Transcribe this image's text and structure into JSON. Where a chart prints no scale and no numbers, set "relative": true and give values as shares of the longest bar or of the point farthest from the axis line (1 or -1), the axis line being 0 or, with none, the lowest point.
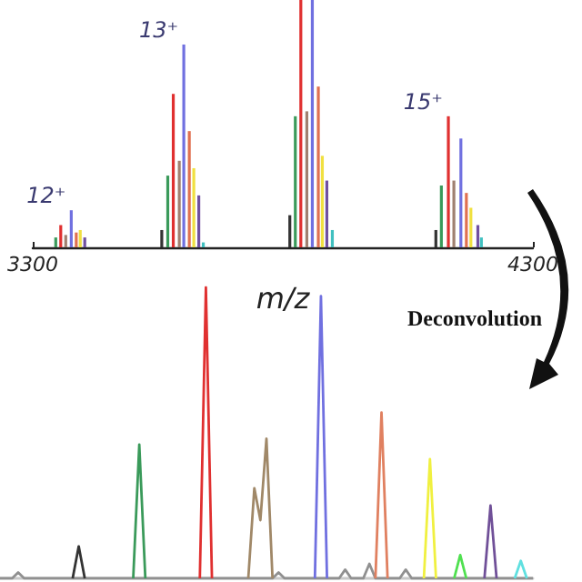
{
  "chart_data": [
    {
      "type": "bar",
      "relative": true,
      "xlabel": "m/z",
      "xlim": [
        3300,
        4300
      ],
      "xticks": [
        3300,
        4300
      ],
      "tick_labels": "x",
      "annotations": [
        {
          "text": "12⁺",
          "x": 3377,
          "y": 0.15
        },
        {
          "text": "13⁺",
          "x": 3602,
          "y": 0.82
        },
        {
          "text": "15⁺",
          "x": 4131,
          "y": 0.53
        },
        "Deconvolution"
      ],
      "series": [
        {
          "color": "#333333",
          "x": [
            3558,
            3814,
            4106
          ],
          "values": [
            0.07,
            0.13,
            0.07
          ]
        },
        {
          "color": "#3a9a5a",
          "x": [
            3346,
            3570,
            3825,
            4117
          ],
          "values": [
            0.04,
            0.29,
            0.53,
            0.25
          ]
        },
        {
          "color": "#e03030",
          "x": [
            3356,
            3581,
            3836,
            4131
          ],
          "values": [
            0.09,
            0.62,
            1,
            0.53
          ]
        },
        {
          "color": "#a08070",
          "x": [
            3366,
            3593,
            3848,
            4142
          ],
          "values": [
            0.05,
            0.35,
            0.55,
            0.27
          ]
        },
        {
          "color": "#7070e0",
          "x": [
            3377,
            3602,
            3859,
            4156
          ],
          "values": [
            0.15,
            0.82,
            1,
            0.44
          ]
        },
        {
          "color": "#e07050",
          "x": [
            3387,
            3613,
            3871,
            4167
          ],
          "values": [
            0.06,
            0.47,
            0.65,
            0.22
          ]
        },
        {
          "color": "#f0e040",
          "x": [
            3395,
            3622,
            3879,
            4176
          ],
          "values": [
            0.07,
            0.32,
            0.37,
            0.16
          ]
        },
        {
          "color": "#7050a0",
          "x": [
            3404,
            3632,
            3888,
            4190
          ],
          "values": [
            0.04,
            0.21,
            0.27,
            0.09
          ]
        },
        {
          "color": "#40c0c0",
          "x": [
            3641,
            3899,
            4197
          ],
          "values": [
            0.02,
            0.07,
            0.04
          ]
        }
      ]
    },
    {
      "type": "line",
      "relative": true,
      "tick_labels": false,
      "categories": [
        null,
        null,
        null,
        null,
        null,
        null,
        null,
        null,
        null,
        null,
        null,
        null,
        null,
        null,
        null,
        null,
        null,
        null,
        null,
        null,
        null,
        null,
        null,
        null,
        null,
        null,
        null,
        null,
        null,
        null,
        null,
        null,
        null,
        null,
        null,
        null,
        null,
        null,
        null,
        null,
        null,
        null,
        null,
        null,
        null,
        null,
        null,
        null,
        null,
        null,
        null,
        null,
        null,
        null,
        null,
        null,
        null,
        null,
        null,
        null,
        null,
        null,
        null,
        null,
        null,
        null,
        null,
        null,
        null,
        null,
        null,
        null,
        null,
        null,
        null,
        null,
        null,
        null,
        null,
        null,
        null,
        null,
        null,
        null,
        null,
        null,
        null,
        null,
        null
      ],
      "series": [
        {
          "color": "#909090",
          "values": [
            0,
            0,
            0,
            0.02,
            0,
            0,
            0,
            0,
            0,
            0,
            0,
            0,
            0,
            0,
            0,
            0,
            0,
            0,
            0,
            0,
            0,
            0,
            0,
            0,
            0,
            0,
            0,
            0,
            0,
            0,
            0,
            0,
            0,
            0,
            0,
            0,
            0,
            0,
            0,
            0,
            0,
            0,
            0,
            0,
            0,
            0,
            0.02,
            0,
            0,
            0,
            0,
            0,
            0,
            0,
            0,
            0,
            0,
            0.03,
            0,
            0,
            0,
            0.05,
            0,
            0,
            0,
            0,
            0,
            0.03,
            0,
            0,
            0,
            0,
            0,
            0,
            0,
            0,
            0,
            0,
            0,
            0,
            0,
            0,
            0,
            0,
            0,
            0,
            0,
            0,
            0
          ]
        },
        {
          "color": "#333333",
          "values": [
            null,
            null,
            null,
            null,
            null,
            null,
            null,
            null,
            null,
            null,
            null,
            null,
            0,
            0.11,
            0,
            null,
            null,
            null,
            null,
            null,
            null,
            null,
            null,
            null,
            null,
            null,
            null,
            null,
            null,
            null,
            null,
            null,
            null,
            null,
            null,
            null,
            null,
            null,
            null,
            null,
            null,
            null,
            null,
            null,
            null,
            null,
            null,
            null,
            null,
            null,
            null,
            null,
            null,
            null,
            null,
            null,
            null,
            null,
            null,
            null,
            null,
            null,
            null,
            null,
            null,
            null,
            null,
            null,
            null,
            null,
            null,
            null,
            null,
            null,
            null,
            null,
            null,
            null,
            null,
            null,
            null,
            null,
            null,
            null,
            null,
            null,
            null,
            null,
            null
          ]
        },
        {
          "color": "#3a9a5a",
          "values": [
            null,
            null,
            null,
            null,
            null,
            null,
            null,
            null,
            null,
            null,
            null,
            null,
            null,
            null,
            null,
            null,
            null,
            null,
            null,
            null,
            null,
            null,
            0,
            0.46,
            0,
            null,
            null,
            null,
            null,
            null,
            null,
            null,
            null,
            null,
            null,
            null,
            null,
            null,
            null,
            null,
            null,
            null,
            null,
            null,
            null,
            null,
            null,
            null,
            null,
            null,
            null,
            null,
            null,
            null,
            null,
            null,
            null,
            null,
            null,
            null,
            null,
            null,
            null,
            null,
            null,
            null,
            null,
            null,
            null,
            null,
            null,
            null,
            null,
            null,
            null,
            null,
            null,
            null,
            null,
            null,
            null,
            null,
            null,
            null,
            null,
            null,
            null,
            null,
            null
          ]
        },
        {
          "color": "#e03030",
          "values": [
            null,
            null,
            null,
            null,
            null,
            null,
            null,
            null,
            null,
            null,
            null,
            null,
            null,
            null,
            null,
            null,
            null,
            null,
            null,
            null,
            null,
            null,
            null,
            null,
            null,
            null,
            null,
            null,
            null,
            null,
            null,
            null,
            null,
            0,
            1,
            0,
            null,
            null,
            null,
            null,
            null,
            null,
            null,
            null,
            null,
            null,
            null,
            null,
            null,
            null,
            null,
            null,
            null,
            null,
            null,
            null,
            null,
            null,
            null,
            null,
            null,
            null,
            null,
            null,
            null,
            null,
            null,
            null,
            null,
            null,
            null,
            null,
            null,
            null,
            null,
            null,
            null,
            null,
            null,
            null,
            null,
            null,
            null,
            null,
            null,
            null,
            null,
            null,
            null
          ]
        },
        {
          "color": "#a08868",
          "values": [
            null,
            null,
            null,
            null,
            null,
            null,
            null,
            null,
            null,
            null,
            null,
            null,
            null,
            null,
            null,
            null,
            null,
            null,
            null,
            null,
            null,
            null,
            null,
            null,
            null,
            null,
            null,
            null,
            null,
            null,
            null,
            null,
            null,
            null,
            null,
            null,
            null,
            null,
            null,
            null,
            null,
            0,
            0.31,
            0.2,
            0.48,
            0,
            null,
            null,
            null,
            null,
            null,
            null,
            null,
            null,
            null,
            null,
            null,
            null,
            null,
            null,
            null,
            null,
            null,
            null,
            null,
            null,
            null,
            null,
            null,
            null,
            null,
            null,
            null,
            null,
            null,
            null,
            null,
            null,
            null,
            null,
            null,
            null,
            null,
            null,
            null,
            null,
            null,
            null,
            null
          ]
        },
        {
          "color": "#7070e0",
          "values": [
            null,
            null,
            null,
            null,
            null,
            null,
            null,
            null,
            null,
            null,
            null,
            null,
            null,
            null,
            null,
            null,
            null,
            null,
            null,
            null,
            null,
            null,
            null,
            null,
            null,
            null,
            null,
            null,
            null,
            null,
            null,
            null,
            null,
            null,
            null,
            null,
            null,
            null,
            null,
            null,
            null,
            null,
            null,
            null,
            null,
            null,
            null,
            null,
            null,
            null,
            null,
            null,
            0,
            0.97,
            0,
            null,
            null,
            null,
            null,
            null,
            null,
            null,
            null,
            null,
            null,
            null,
            null,
            null,
            null,
            null,
            null,
            null,
            null,
            null,
            null,
            null,
            null,
            null,
            null,
            null,
            null,
            null,
            null,
            null,
            null,
            null,
            null,
            null,
            null
          ]
        },
        {
          "color": "#e08060",
          "values": [
            null,
            null,
            null,
            null,
            null,
            null,
            null,
            null,
            null,
            null,
            null,
            null,
            null,
            null,
            null,
            null,
            null,
            null,
            null,
            null,
            null,
            null,
            null,
            null,
            null,
            null,
            null,
            null,
            null,
            null,
            null,
            null,
            null,
            null,
            null,
            null,
            null,
            null,
            null,
            null,
            null,
            null,
            null,
            null,
            null,
            null,
            null,
            null,
            null,
            null,
            null,
            null,
            null,
            null,
            null,
            null,
            null,
            null,
            null,
            null,
            null,
            null,
            0,
            0.57,
            0,
            null,
            null,
            null,
            null,
            null,
            null,
            null,
            null,
            null,
            null,
            null,
            null,
            null,
            null,
            null,
            null,
            null,
            null,
            null,
            null,
            null,
            null,
            null,
            null
          ]
        },
        {
          "color": "#f0f040",
          "values": [
            null,
            null,
            null,
            null,
            null,
            null,
            null,
            null,
            null,
            null,
            null,
            null,
            null,
            null,
            null,
            null,
            null,
            null,
            null,
            null,
            null,
            null,
            null,
            null,
            null,
            null,
            null,
            null,
            null,
            null,
            null,
            null,
            null,
            null,
            null,
            null,
            null,
            null,
            null,
            null,
            null,
            null,
            null,
            null,
            null,
            null,
            null,
            null,
            null,
            null,
            null,
            null,
            null,
            null,
            null,
            null,
            null,
            null,
            null,
            null,
            null,
            null,
            null,
            null,
            null,
            null,
            null,
            null,
            null,
            null,
            0,
            0.41,
            0,
            null,
            null,
            null,
            null,
            null,
            null,
            null,
            null,
            null,
            null,
            null,
            null,
            null,
            null,
            null,
            null
          ]
        },
        {
          "color": "#50e050",
          "values": [
            null,
            null,
            null,
            null,
            null,
            null,
            null,
            null,
            null,
            null,
            null,
            null,
            null,
            null,
            null,
            null,
            null,
            null,
            null,
            null,
            null,
            null,
            null,
            null,
            null,
            null,
            null,
            null,
            null,
            null,
            null,
            null,
            null,
            null,
            null,
            null,
            null,
            null,
            null,
            null,
            null,
            null,
            null,
            null,
            null,
            null,
            null,
            null,
            null,
            null,
            null,
            null,
            null,
            null,
            null,
            null,
            null,
            null,
            null,
            null,
            null,
            null,
            null,
            null,
            null,
            null,
            null,
            null,
            null,
            null,
            null,
            null,
            null,
            null,
            null,
            0,
            0.08,
            0,
            null,
            null,
            null,
            null,
            null,
            null,
            null,
            null,
            null,
            null,
            null
          ]
        },
        {
          "color": "#705098",
          "values": [
            null,
            null,
            null,
            null,
            null,
            null,
            null,
            null,
            null,
            null,
            null,
            null,
            null,
            null,
            null,
            null,
            null,
            null,
            null,
            null,
            null,
            null,
            null,
            null,
            null,
            null,
            null,
            null,
            null,
            null,
            null,
            null,
            null,
            null,
            null,
            null,
            null,
            null,
            null,
            null,
            null,
            null,
            null,
            null,
            null,
            null,
            null,
            null,
            null,
            null,
            null,
            null,
            null,
            null,
            null,
            null,
            null,
            null,
            null,
            null,
            null,
            null,
            null,
            null,
            null,
            null,
            null,
            null,
            null,
            null,
            null,
            null,
            null,
            null,
            null,
            null,
            null,
            null,
            null,
            null,
            0,
            0.25,
            0,
            null,
            null,
            null,
            null,
            null,
            null
          ]
        },
        {
          "color": "#60e0e0",
          "values": [
            null,
            null,
            null,
            null,
            null,
            null,
            null,
            null,
            null,
            null,
            null,
            null,
            null,
            null,
            null,
            null,
            null,
            null,
            null,
            null,
            null,
            null,
            null,
            null,
            null,
            null,
            null,
            null,
            null,
            null,
            null,
            null,
            null,
            null,
            null,
            null,
            null,
            null,
            null,
            null,
            null,
            null,
            null,
            null,
            null,
            null,
            null,
            null,
            null,
            null,
            null,
            null,
            null,
            null,
            null,
            null,
            null,
            null,
            null,
            null,
            null,
            null,
            null,
            null,
            null,
            null,
            null,
            null,
            null,
            null,
            null,
            null,
            null,
            null,
            null,
            null,
            null,
            null,
            null,
            null,
            null,
            null,
            null,
            null,
            null,
            0,
            0.06,
            0,
            null
          ]
        }
      ]
    }
  ]
}
